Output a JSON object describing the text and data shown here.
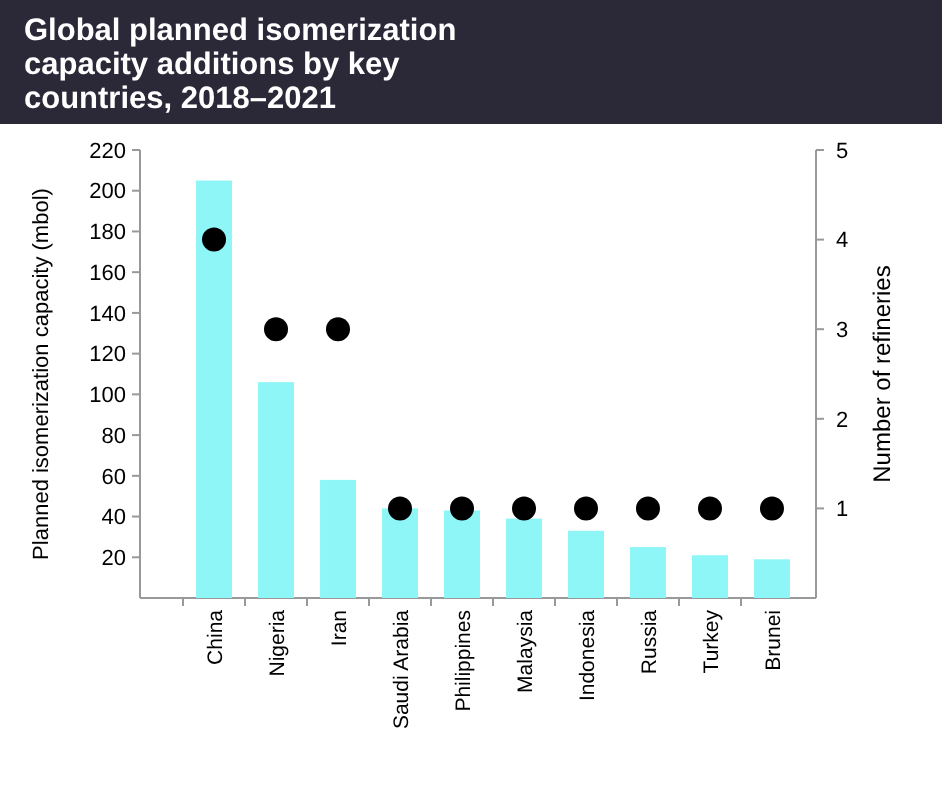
{
  "chart_data": {
    "type": "bar",
    "title": "Global planned isomerization capacity additions by key countries, 2018–2021",
    "ylabel": "Planned isomerization capacity (mbol)",
    "y2label": "Number of refineries",
    "categories": [
      "China",
      "Nigeria",
      "Iran",
      "Saudi Arabia",
      "Philippines",
      "Malaysia",
      "Indonesia",
      "Russia",
      "Turkey",
      "Brunei"
    ],
    "series": [
      {
        "color": "#8ef6f6",
        "values": [
          205,
          106,
          58,
          44,
          43,
          39,
          33,
          25,
          21,
          19
        ]
      },
      {
        "type": "scatter",
        "axis": "y2",
        "color": "#000000",
        "values": [
          4,
          3,
          3,
          1,
          1,
          1,
          1,
          1,
          1,
          1
        ]
      }
    ],
    "ylim": [
      0,
      220
    ],
    "yticks": [
      20,
      40,
      60,
      80,
      100,
      120,
      140,
      160,
      180,
      200,
      220
    ],
    "y2lim": [
      0,
      5
    ],
    "y2ticks": [
      1,
      2,
      3,
      4,
      5
    ],
    "marker": "circle",
    "grid": false
  }
}
